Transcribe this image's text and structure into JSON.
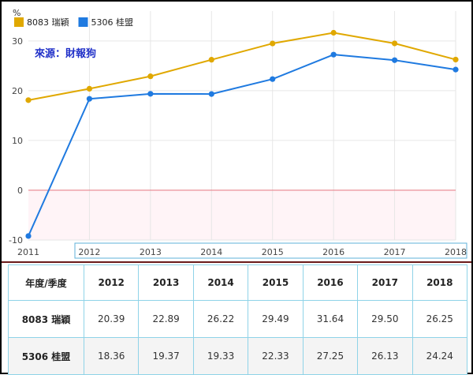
{
  "chart_data": {
    "type": "line",
    "source_note": "來源：財報狗",
    "y_unit": "%",
    "x": [
      "2011",
      "2012",
      "2013",
      "2014",
      "2015",
      "2016",
      "2017",
      "2018"
    ],
    "ylim": [
      -10,
      36
    ],
    "yticks": [
      -10,
      0,
      10,
      20,
      30
    ],
    "grid": true,
    "legend_position": "top-left",
    "series": [
      {
        "name": "8083 瑞穎",
        "color": "#e0a800",
        "values": [
          18.1,
          20.39,
          22.89,
          26.22,
          29.49,
          31.64,
          29.5,
          26.25
        ]
      },
      {
        "name": "5306 桂盟",
        "color": "#1f7ae0",
        "values": [
          -9.2,
          18.36,
          19.37,
          19.33,
          22.33,
          27.25,
          26.13,
          24.24
        ]
      }
    ],
    "zero_line_color": "#e8848c"
  },
  "table": {
    "header_label": "年度/季度",
    "years": [
      "2012",
      "2013",
      "2014",
      "2015",
      "2016",
      "2017",
      "2018"
    ],
    "rows": [
      {
        "label": "8083 瑞穎",
        "values": [
          "20.39",
          "22.89",
          "26.22",
          "29.49",
          "31.64",
          "29.50",
          "26.25"
        ]
      },
      {
        "label": "5306 桂盟",
        "values": [
          "18.36",
          "19.37",
          "19.33",
          "22.33",
          "27.25",
          "26.13",
          "24.24"
        ]
      }
    ]
  }
}
